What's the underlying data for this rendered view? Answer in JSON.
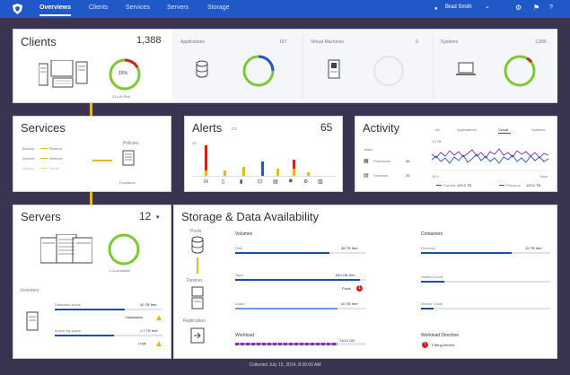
{
  "nav": {
    "tabs": [
      "Overviews",
      "Clients",
      "Services",
      "Servers",
      "Storage"
    ],
    "active_tab": "Overviews",
    "user_name": "Brad Smith",
    "icons": [
      "shield-logo-icon",
      "chevron-down-icon",
      "gear-icon",
      "flag-icon",
      "help-icon"
    ]
  },
  "clients": {
    "title": "Clients",
    "count": "1,388",
    "ring_percent": "15%",
    "ring_caption": "214 At Risk",
    "columns": [
      {
        "label": "Applications",
        "count": "107",
        "icon": "database-icon"
      },
      {
        "label": "Virtual Machines",
        "count": "0",
        "icon": "server-tower-icon"
      },
      {
        "label": "Systems",
        "count": "1,080",
        "icon": "laptop-icon"
      }
    ]
  },
  "services": {
    "title": "Services",
    "rows": [
      {
        "label": "Backup",
        "value": "Restore"
      },
      {
        "label": "Archive",
        "value": "Retrieve"
      },
      {
        "label": "Migrate",
        "value": "Recall"
      }
    ],
    "policies_label": "Policies",
    "expiration_label": "Expiration"
  },
  "alerts": {
    "title": "Alerts",
    "count": "65",
    "y_top_label": "25"
  },
  "activity": {
    "title": "Activity",
    "filters": [
      "All",
      "Applications",
      "Virtual",
      "Systems"
    ],
    "active_filter": "Virtual",
    "tasks_label": "Tasks",
    "processes_label": "Processes",
    "processes_count": "38",
    "sessions_label": "Sessions",
    "sessions_count": "29",
    "y_label": "10 TB",
    "x_start": "24 h",
    "x_end": "Now",
    "current_label": "Current",
    "current_value": "109.2 TB",
    "previous_label": "Previous",
    "previous_value": "129.2 TB"
  },
  "servers": {
    "title": "Servers",
    "count": "12",
    "ring_caption": "1 Unavailable",
    "inventory_label": "Inventory",
    "database_space_label": "Database space",
    "database_space_value": "40 TB free",
    "databases_label": "Databases",
    "active_log_label": "Active log space",
    "active_log_value": "1.7 TB free",
    "logs_label": "Logs"
  },
  "storage": {
    "title": "Storage & Data Availability",
    "pools_label": "Pools",
    "devices_label": "Devices",
    "replication_label": "Replication",
    "volumes_label": "Volumes",
    "containers_label": "Containers",
    "volumes": [
      {
        "label": "Disk",
        "value": "58 TB free",
        "fill": 0.72,
        "color": "#1a4fb0"
      },
      {
        "label": "Tape",
        "value": "860 GB free",
        "fill": 0.95,
        "color": "#1a4fb0"
      },
      {
        "label": "Cloud",
        "value": "40 TB free",
        "fill": 0.78,
        "color": "#6a9ae8"
      }
    ],
    "pools_status": "Pools",
    "pools_badge": "1",
    "containers": [
      {
        "label": "Directory",
        "value": "15 TB free",
        "fill": 0.7
      },
      {
        "label": "Hosted Cloud",
        "value": "",
        "fill": 0.18
      },
      {
        "label": "Vendor Cloud",
        "value": "",
        "fill": 0.1
      }
    ],
    "workload_label": "Workload",
    "workload_value": "740.0 GB",
    "workload_direction_label": "Workload Direction",
    "falling_behind_label": "Falling behind"
  },
  "footer": {
    "text": "Collected July 15, 2014, 8:30:00 AM"
  },
  "colors": {
    "nav": "#2058c8",
    "accent_green": "#7ec832",
    "accent_red": "#d42020",
    "accent_yellow": "#e8b820",
    "accent_blue": "#1a4fb0",
    "accent_purple": "#8030a0"
  }
}
